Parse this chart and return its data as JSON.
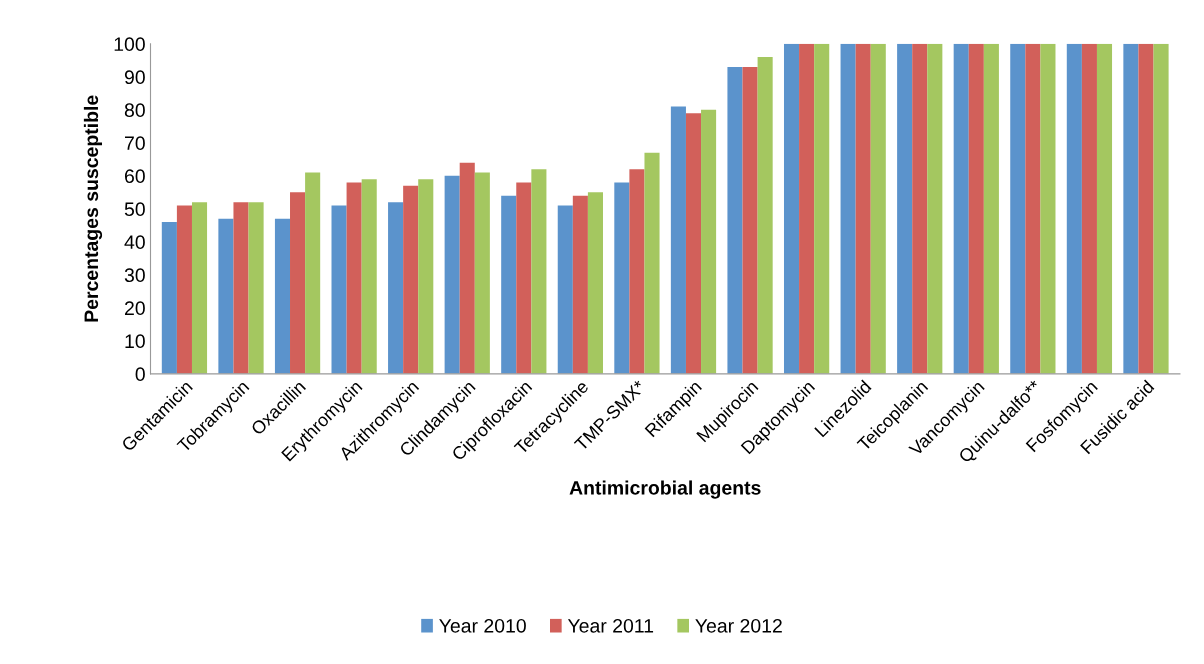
{
  "chart_data": {
    "type": "bar",
    "xlabel": "Antimicrobial agents",
    "ylabel": "Percentages susceptible",
    "categories": [
      "Gentamicin",
      "Tobramycin",
      "Oxacillin",
      "Erythromycin",
      "Azithromycin",
      "Clindamycin",
      "Ciprofloxacin",
      "Tetracycline",
      "TMP-SMX*",
      "Rifampin",
      "Mupirocin",
      "Daptomycin",
      "Linezolid",
      "Teicoplanin",
      "Vancomycin",
      "Quinu-dalfo**",
      "Fosfomycin",
      "Fusidic acid"
    ],
    "series": [
      {
        "name": "Year 2010",
        "color": "#5b93cc",
        "values": [
          46,
          47,
          47,
          51,
          52,
          60,
          54,
          51,
          58,
          81,
          93,
          100,
          100,
          100,
          100,
          100,
          100,
          100
        ]
      },
      {
        "name": "Year 2011",
        "color": "#d2605a",
        "values": [
          51,
          52,
          55,
          58,
          57,
          64,
          58,
          54,
          62,
          79,
          93,
          100,
          100,
          100,
          100,
          100,
          100,
          100
        ]
      },
      {
        "name": "Year 2012",
        "color": "#a4c760",
        "values": [
          52,
          52,
          61,
          59,
          59,
          61,
          62,
          55,
          67,
          80,
          96,
          100,
          100,
          100,
          100,
          100,
          100,
          100
        ]
      }
    ],
    "ylim": [
      0,
      100
    ],
    "yticks": [
      0,
      10,
      20,
      30,
      40,
      50,
      60,
      70,
      80,
      90,
      100
    ],
    "grid": false,
    "legend": "bottom"
  }
}
